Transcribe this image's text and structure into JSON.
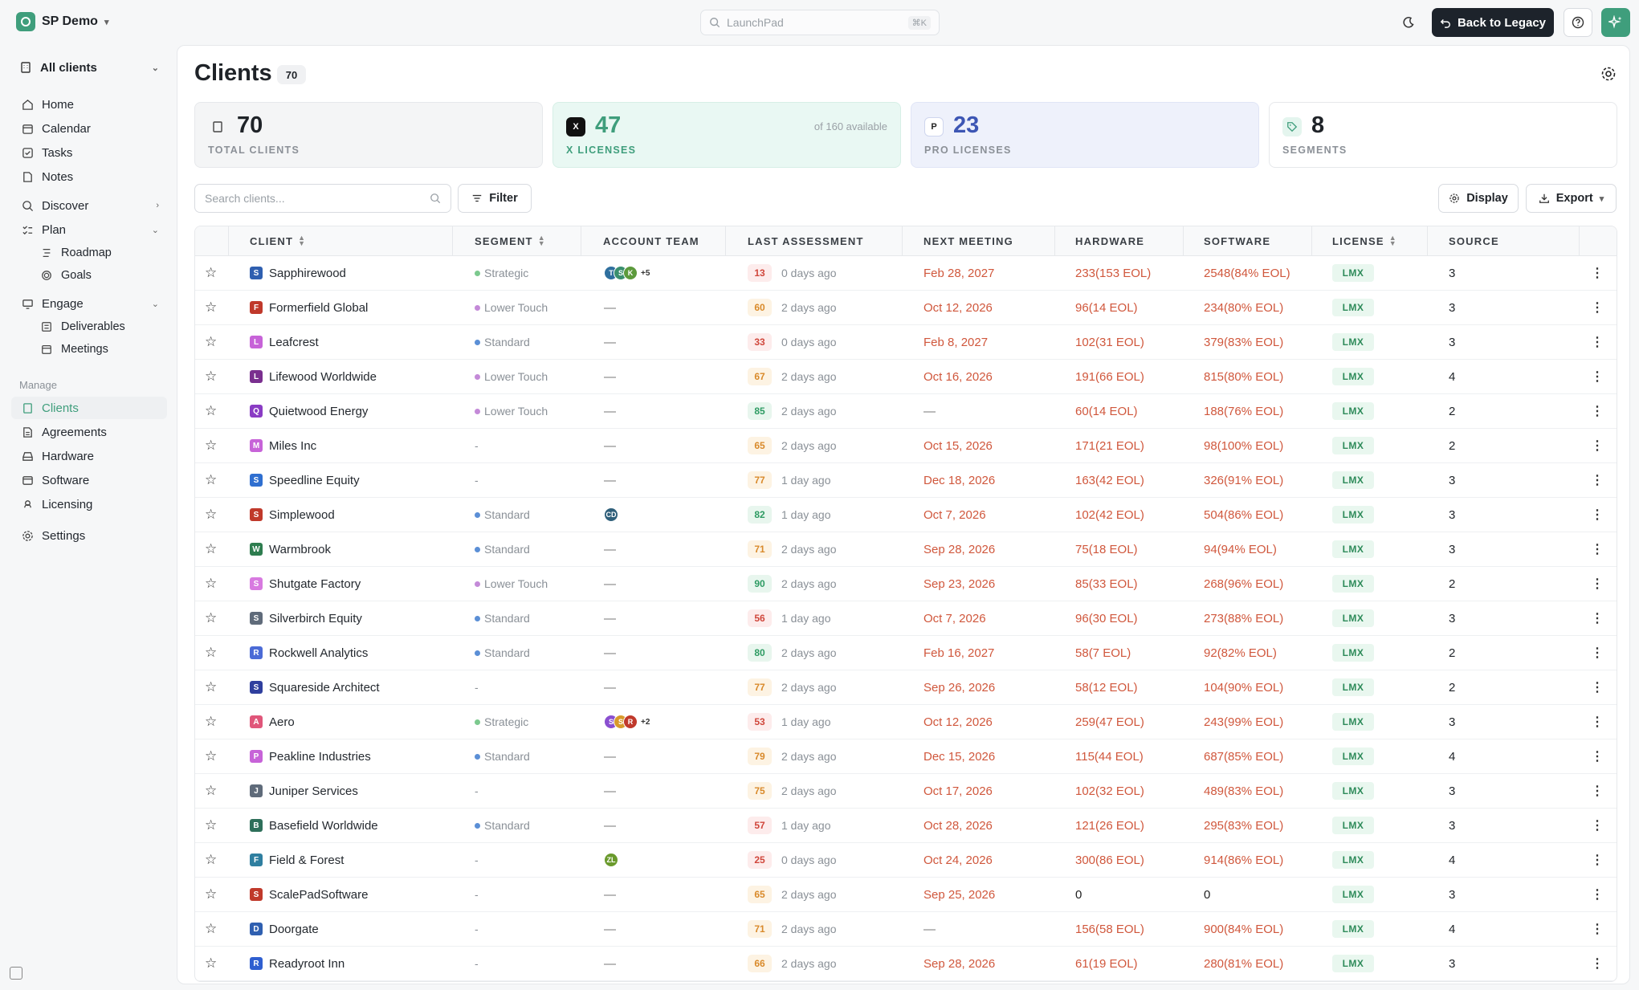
{
  "topbar": {
    "org_name": "SP Demo",
    "launchpad_placeholder": "LaunchPad",
    "launchpad_shortcut": "⌘K",
    "back_button": "Back to Legacy"
  },
  "sidebar": {
    "scope": "All clients",
    "items": [
      {
        "label": "Home",
        "icon": "home-icon"
      },
      {
        "label": "Calendar",
        "icon": "calendar-icon"
      },
      {
        "label": "Tasks",
        "icon": "tasks-icon"
      },
      {
        "label": "Notes",
        "icon": "notes-icon"
      },
      {
        "label": "Discover",
        "icon": "search-icon"
      },
      {
        "label": "Plan",
        "icon": "plan-icon"
      },
      {
        "label": "Roadmap",
        "icon": "roadmap-icon"
      },
      {
        "label": "Goals",
        "icon": "goals-icon"
      },
      {
        "label": "Engage",
        "icon": "engage-icon"
      },
      {
        "label": "Deliverables",
        "icon": "deliverables-icon"
      },
      {
        "label": "Meetings",
        "icon": "meetings-icon"
      }
    ],
    "manage_label": "Manage",
    "manage_items": [
      {
        "label": "Clients",
        "icon": "clients-icon"
      },
      {
        "label": "Agreements",
        "icon": "agreements-icon"
      },
      {
        "label": "Hardware",
        "icon": "hardware-icon"
      },
      {
        "label": "Software",
        "icon": "software-icon"
      },
      {
        "label": "Licensing",
        "icon": "licensing-icon"
      }
    ],
    "settings": "Settings"
  },
  "page": {
    "title": "Clients",
    "count": "70"
  },
  "stats": {
    "total": {
      "value": "70",
      "label": "TOTAL CLIENTS"
    },
    "x": {
      "value": "47",
      "label": "X LICENSES",
      "aux": "of 160 available",
      "icon_text": "X"
    },
    "pro": {
      "value": "23",
      "label": "PRO LICENSES",
      "icon_text": "P"
    },
    "segments": {
      "value": "8",
      "label": "SEGMENTS"
    }
  },
  "toolbar": {
    "search_placeholder": "Search clients...",
    "filter": "Filter",
    "display": "Display",
    "export": "Export"
  },
  "columns": {
    "client": "CLIENT",
    "segment": "SEGMENT",
    "team": "ACCOUNT TEAM",
    "assessment": "LAST ASSESSMENT",
    "meeting": "NEXT MEETING",
    "hardware": "HARDWARE",
    "software": "SOFTWARE",
    "license": "LICENSE",
    "source": "SOURCE"
  },
  "colors": {
    "accent": "#3f9e7c",
    "strategic": "#7cc98e",
    "standard": "#5b8fd6",
    "lower_touch": "#c48ad8",
    "score_red_bg": "#fdecec",
    "score_red_fg": "#d0473c",
    "score_amber_bg": "#fdf3e3",
    "score_amber_fg": "#d98a2b",
    "score_green_bg": "#e8f6ee",
    "score_green_fg": "#2e9b63"
  },
  "rows": [
    {
      "letter": "S",
      "letter_color": "#2f5fb0",
      "name": "Sapphirewood",
      "segment": "Strategic",
      "seg_color": "#7cc98e",
      "team": [
        {
          "i": "T",
          "c": "#2f6f9e"
        },
        {
          "i": "S",
          "c": "#3a8f6e"
        },
        {
          "i": "K",
          "c": "#5c9a3c"
        }
      ],
      "team_more": "+5",
      "score": "13",
      "tone": "red",
      "assessed": "0 days ago",
      "meeting": "Feb 28, 2027",
      "hw": "233",
      "hw_eol": " (153 EOL)",
      "sw": "2548",
      "sw_eol": " (84% EOL)",
      "license": "LMX",
      "source": "3"
    },
    {
      "letter": "F",
      "letter_color": "#c0392b",
      "name": "Formerfield Global",
      "segment": "Lower Touch",
      "seg_color": "#c48ad8",
      "team": [],
      "team_more": "",
      "team_text": "—",
      "score": "60",
      "tone": "amber",
      "assessed": "2 days ago",
      "meeting": "Oct 12, 2026",
      "hw": "96",
      "hw_eol": " (14 EOL)",
      "sw": "234",
      "sw_eol": " (80% EOL)",
      "license": "LMX",
      "source": "3"
    },
    {
      "letter": "L",
      "letter_color": "#c763d8",
      "name": "Leafcrest",
      "segment": "Standard",
      "seg_color": "#5b8fd6",
      "team": [],
      "team_more": "",
      "team_text": "—",
      "score": "33",
      "tone": "red",
      "assessed": "0 days ago",
      "meeting": "Feb 8, 2027",
      "hw": "102",
      "hw_eol": " (31 EOL)",
      "sw": "379",
      "sw_eol": " (83% EOL)",
      "license": "LMX",
      "source": "3"
    },
    {
      "letter": "L",
      "letter_color": "#7a2f8f",
      "name": "Lifewood Worldwide",
      "segment": "Lower Touch",
      "seg_color": "#c48ad8",
      "team": [],
      "team_more": "",
      "team_text": "—",
      "score": "67",
      "tone": "amber",
      "assessed": "2 days ago",
      "meeting": "Oct 16, 2026",
      "hw": "191",
      "hw_eol": " (66 EOL)",
      "sw": "815",
      "sw_eol": " (80% EOL)",
      "license": "LMX",
      "source": "4"
    },
    {
      "letter": "Q",
      "letter_color": "#8a3cc4",
      "name": "Quietwood Energy",
      "segment": "Lower Touch",
      "seg_color": "#c48ad8",
      "team": [],
      "team_more": "",
      "team_text": "—",
      "score": "85",
      "tone": "green",
      "assessed": "2 days ago",
      "meeting": "—",
      "hw": "60",
      "hw_eol": " (14 EOL)",
      "sw": "188",
      "sw_eol": " (76% EOL)",
      "license": "LMX",
      "source": "2"
    },
    {
      "letter": "M",
      "letter_color": "#c763d8",
      "name": "Miles Inc",
      "segment": "-",
      "seg_color": "",
      "team": [],
      "team_more": "",
      "team_text": "—",
      "score": "65",
      "tone": "amber",
      "assessed": "2 days ago",
      "meeting": "Oct 15, 2026",
      "hw": "171",
      "hw_eol": " (21 EOL)",
      "sw": "98",
      "sw_eol": " (100% EOL)",
      "license": "LMX",
      "source": "2"
    },
    {
      "letter": "S",
      "letter_color": "#2f6fd0",
      "name": "Speedline Equity",
      "segment": "-",
      "seg_color": "",
      "team": [],
      "team_more": "",
      "team_text": "—",
      "score": "77",
      "tone": "amber",
      "assessed": "1 day ago",
      "meeting": "Dec 18, 2026",
      "hw": "163",
      "hw_eol": " (42 EOL)",
      "sw": "326",
      "sw_eol": " (91% EOL)",
      "license": "LMX",
      "source": "3"
    },
    {
      "letter": "S",
      "letter_color": "#c0392b",
      "name": "Simplewood",
      "segment": "Standard",
      "seg_color": "#5b8fd6",
      "team": [
        {
          "i": "CD",
          "c": "#2f5f7a"
        }
      ],
      "team_more": "",
      "score": "82",
      "tone": "green",
      "assessed": "1 day ago",
      "meeting": "Oct 7, 2026",
      "hw": "102",
      "hw_eol": " (42 EOL)",
      "sw": "504",
      "sw_eol": " (86% EOL)",
      "license": "LMX",
      "source": "3"
    },
    {
      "letter": "W",
      "letter_color": "#2e7d4f",
      "name": "Warmbrook",
      "segment": "Standard",
      "seg_color": "#5b8fd6",
      "team": [],
      "team_more": "",
      "team_text": "—",
      "score": "71",
      "tone": "amber",
      "assessed": "2 days ago",
      "meeting": "Sep 28, 2026",
      "hw": "75",
      "hw_eol": " (18 EOL)",
      "sw": "94",
      "sw_eol": " (94% EOL)",
      "license": "LMX",
      "source": "3"
    },
    {
      "letter": "S",
      "letter_color": "#d87ae0",
      "name": "Shutgate Factory",
      "segment": "Lower Touch",
      "seg_color": "#c48ad8",
      "team": [],
      "team_more": "",
      "team_text": "—",
      "score": "90",
      "tone": "green",
      "assessed": "2 days ago",
      "meeting": "Sep 23, 2026",
      "hw": "85",
      "hw_eol": " (33 EOL)",
      "sw": "268",
      "sw_eol": " (96% EOL)",
      "license": "LMX",
      "source": "2"
    },
    {
      "letter": "S",
      "letter_color": "#5f6b7a",
      "name": "Silverbirch Equity",
      "segment": "Standard",
      "seg_color": "#5b8fd6",
      "team": [],
      "team_more": "",
      "team_text": "—",
      "score": "56",
      "tone": "red",
      "assessed": "1 day ago",
      "meeting": "Oct 7, 2026",
      "hw": "96",
      "hw_eol": " (30 EOL)",
      "sw": "273",
      "sw_eol": " (88% EOL)",
      "license": "LMX",
      "source": "3"
    },
    {
      "letter": "R",
      "letter_color": "#4b6bd6",
      "name": "Rockwell Analytics",
      "segment": "Standard",
      "seg_color": "#5b8fd6",
      "team": [],
      "team_more": "",
      "team_text": "—",
      "score": "80",
      "tone": "green",
      "assessed": "2 days ago",
      "meeting": "Feb 16, 2027",
      "hw": "58",
      "hw_eol": " (7 EOL)",
      "sw": "92",
      "sw_eol": " (82% EOL)",
      "license": "LMX",
      "source": "2"
    },
    {
      "letter": "S",
      "letter_color": "#2f3f9e",
      "name": "Squareside Architect",
      "segment": "-",
      "seg_color": "",
      "team": [],
      "team_more": "",
      "team_text": "—",
      "score": "77",
      "tone": "amber",
      "assessed": "2 days ago",
      "meeting": "Sep 26, 2026",
      "hw": "58",
      "hw_eol": " (12 EOL)",
      "sw": "104",
      "sw_eol": " (90% EOL)",
      "license": "LMX",
      "source": "2"
    },
    {
      "letter": "A",
      "letter_color": "#e0567a",
      "name": "Aero",
      "segment": "Strategic",
      "seg_color": "#7cc98e",
      "team": [
        {
          "i": "S",
          "c": "#8a4fd0"
        },
        {
          "i": "S",
          "c": "#d89a2b"
        },
        {
          "i": "R",
          "c": "#c0392b"
        }
      ],
      "team_more": "+2",
      "score": "53",
      "tone": "red",
      "assessed": "1 day ago",
      "meeting": "Oct 12, 2026",
      "hw": "259",
      "hw_eol": " (47 EOL)",
      "sw": "243",
      "sw_eol": " (99% EOL)",
      "license": "LMX",
      "source": "3"
    },
    {
      "letter": "P",
      "letter_color": "#c763d8",
      "name": "Peakline Industries",
      "segment": "Standard",
      "seg_color": "#5b8fd6",
      "team": [],
      "team_more": "",
      "team_text": "—",
      "score": "79",
      "tone": "amber",
      "assessed": "2 days ago",
      "meeting": "Dec 15, 2026",
      "hw": "115",
      "hw_eol": " (44 EOL)",
      "sw": "687",
      "sw_eol": " (85% EOL)",
      "license": "LMX",
      "source": "4"
    },
    {
      "letter": "J",
      "letter_color": "#5f6b7a",
      "name": "Juniper Services",
      "segment": "-",
      "seg_color": "",
      "team": [],
      "team_more": "",
      "team_text": "—",
      "score": "75",
      "tone": "amber",
      "assessed": "2 days ago",
      "meeting": "Oct 17, 2026",
      "hw": "102",
      "hw_eol": " (32 EOL)",
      "sw": "489",
      "sw_eol": " (83% EOL)",
      "license": "LMX",
      "source": "3"
    },
    {
      "letter": "B",
      "letter_color": "#2e6f5a",
      "name": "Basefield Worldwide",
      "segment": "Standard",
      "seg_color": "#5b8fd6",
      "team": [],
      "team_more": "",
      "team_text": "—",
      "score": "57",
      "tone": "red",
      "assessed": "1 day ago",
      "meeting": "Oct 28, 2026",
      "hw": "121",
      "hw_eol": " (26 EOL)",
      "sw": "295",
      "sw_eol": " (83% EOL)",
      "license": "LMX",
      "source": "3"
    },
    {
      "letter": "F",
      "letter_color": "#2f7fa0",
      "name": "Field & Forest",
      "segment": "-",
      "seg_color": "",
      "team": [
        {
          "i": "ZL",
          "c": "#6a9a2c"
        }
      ],
      "team_more": "",
      "score": "25",
      "tone": "red",
      "assessed": "0 days ago",
      "meeting": "Oct 24, 2026",
      "hw": "300",
      "hw_eol": " (86 EOL)",
      "sw": "914",
      "sw_eol": " (86% EOL)",
      "license": "LMX",
      "source": "4"
    },
    {
      "letter": "S",
      "letter_color": "#c0392b",
      "name": "ScalePadSoftware",
      "segment": "-",
      "seg_color": "",
      "team": [],
      "team_more": "",
      "team_text": "—",
      "score": "65",
      "tone": "amber",
      "assessed": "2 days ago",
      "meeting": "Sep 25, 2026",
      "hw": "0",
      "hw_eol": "",
      "sw": "0",
      "sw_eol": "",
      "license": "LMX",
      "source": "3"
    },
    {
      "letter": "D",
      "letter_color": "#2f5fb0",
      "name": "Doorgate",
      "segment": "-",
      "seg_color": "",
      "team": [],
      "team_more": "",
      "team_text": "—",
      "score": "71",
      "tone": "amber",
      "assessed": "2 days ago",
      "meeting": "—",
      "hw": "156",
      "hw_eol": " (58 EOL)",
      "sw": "900",
      "sw_eol": " (84% EOL)",
      "license": "LMX",
      "source": "4"
    },
    {
      "letter": "R",
      "letter_color": "#2f5fd0",
      "name": "Readyroot Inn",
      "segment": "-",
      "seg_color": "",
      "team": [],
      "team_more": "",
      "team_text": "—",
      "score": "66",
      "tone": "amber",
      "assessed": "2 days ago",
      "meeting": "Sep 28, 2026",
      "hw": "61",
      "hw_eol": " (19 EOL)",
      "sw": "280",
      "sw_eol": " (81% EOL)",
      "license": "LMX",
      "source": "3"
    }
  ]
}
